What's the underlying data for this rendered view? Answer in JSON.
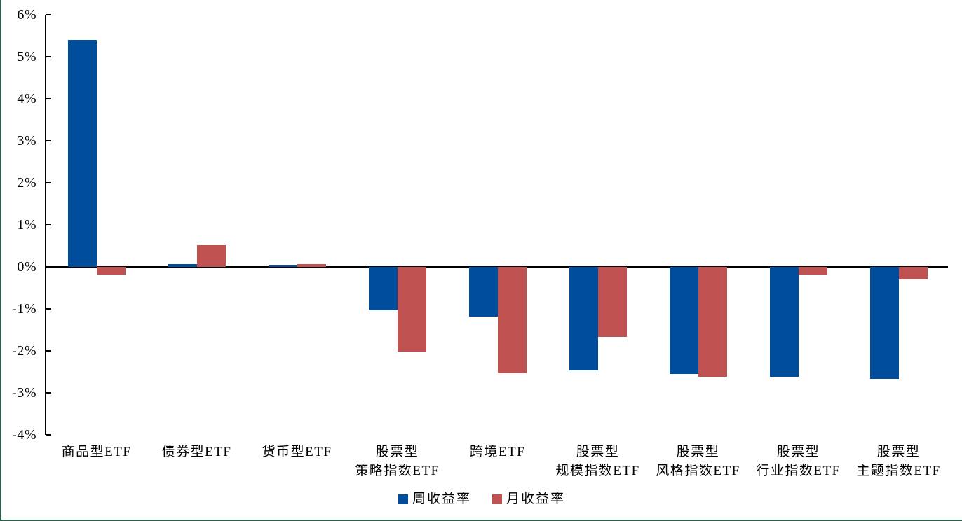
{
  "chart_data": {
    "type": "bar",
    "title": "",
    "categories": [
      "商品型ETF",
      "债券型ETF",
      "货币型ETF",
      "股票型\n策略指数ETF",
      "跨境ETF",
      "股票型\n规模指数ETF",
      "股票型\n风格指数ETF",
      "股票型\n行业指数ETF",
      "股票型\n主题指数ETF"
    ],
    "series": [
      {
        "name": "周收益率",
        "color": "#004E9B",
        "values": [
          5.4,
          0.07,
          0.03,
          -1.03,
          -1.18,
          -2.47,
          -2.55,
          -2.61,
          -2.66
        ]
      },
      {
        "name": "月收益率",
        "color": "#C05151",
        "values": [
          -0.18,
          0.52,
          0.06,
          -2.02,
          -2.54,
          -1.66,
          -2.62,
          -0.18,
          -0.3
        ]
      }
    ],
    "xlabel": "",
    "ylabel": "",
    "ylim": [
      -4,
      6
    ],
    "ytick_step": 1,
    "ytick_labels": [
      "6%",
      "5%",
      "4%",
      "3%",
      "2%",
      "1%",
      "0%",
      "-1%",
      "-2%",
      "-3%",
      "-4%"
    ],
    "grid": false,
    "legend_position": "bottom"
  },
  "frame": {
    "border_color": "#2E5E4B",
    "axis_color": "#000000"
  }
}
